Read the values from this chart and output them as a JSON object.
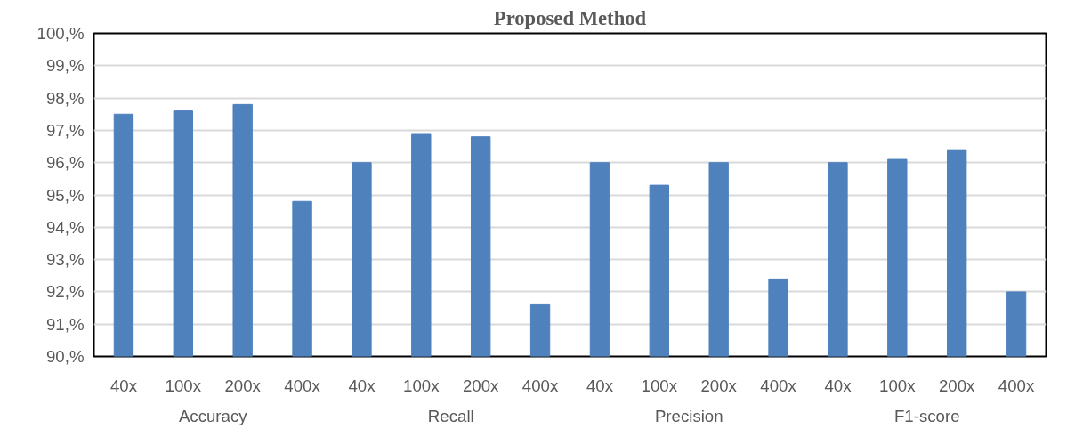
{
  "chart_data": {
    "type": "bar",
    "title": "Proposed Method",
    "categories": [
      "40x",
      "100x",
      "200x",
      "400x",
      "40x",
      "100x",
      "200x",
      "400x",
      "40x",
      "100x",
      "200x",
      "400x",
      "40x",
      "100x",
      "200x",
      "400x"
    ],
    "values": [
      97.5,
      97.6,
      97.8,
      94.8,
      96.0,
      96.9,
      96.8,
      91.6,
      96.0,
      95.3,
      96.0,
      92.4,
      96.0,
      96.1,
      96.4,
      92.0
    ],
    "color": "#4f81bd",
    "annotations": [
      "Accuracy",
      "Recall",
      "Precision",
      "F1-score"
    ],
    "ylim": [
      90,
      100
    ],
    "yticks": [
      {
        "value": 90,
        "label": "90,%"
      },
      {
        "value": 91,
        "label": "91,%"
      },
      {
        "value": 92,
        "label": "92,%"
      },
      {
        "value": 93,
        "label": "93,%"
      },
      {
        "value": 94,
        "label": "94,%"
      },
      {
        "value": 95,
        "label": "95,%"
      },
      {
        "value": 96,
        "label": "96,%"
      },
      {
        "value": 97,
        "label": "97,%"
      },
      {
        "value": 98,
        "label": "98,%"
      },
      {
        "value": 99,
        "label": "99,%"
      },
      {
        "value": 100,
        "label": "100,%"
      }
    ],
    "grid": "y"
  }
}
